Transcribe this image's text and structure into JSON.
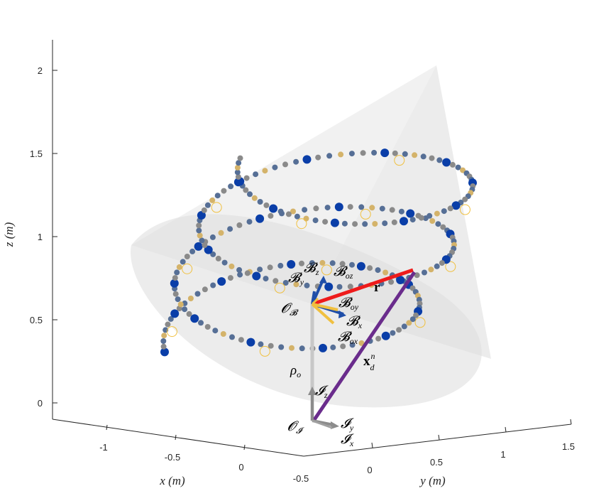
{
  "chart_data": {
    "type": "scatter",
    "title": "",
    "zlabel": "z (m)",
    "xlabel": "x (m)",
    "ylabel": "y (m)",
    "zlim": [
      0,
      2.2
    ],
    "z_ticks": [
      "0",
      "0.5",
      "1",
      "1.5",
      "2"
    ],
    "x_ticks": [
      "-1",
      "-0.5",
      "0"
    ],
    "y_ticks": [
      "-0.5",
      "0",
      "0.5",
      "1",
      "1.5"
    ],
    "grid": false,
    "legend": "none",
    "annotations": {
      "Bz": "𝓑",
      "Bz_sub": "z",
      "By": "𝓑",
      "By_sub": "y",
      "Boz": "𝓑",
      "Boz_sub": "oz",
      "r": "r",
      "OB": "𝓞",
      "OB_sub": "𝓑",
      "Boy": "𝓑",
      "Boy_sub": "oy",
      "Bx": "𝓑",
      "Bx_sub": "x",
      "Box": "𝓑",
      "Box_sub": "ox",
      "xd": "x",
      "xd_sup": "n",
      "xd_sub": "d",
      "rho": "ρ",
      "rho_sub": "o",
      "Iz": "𝓘",
      "Iz_sub": "z",
      "OI": "𝓞",
      "OI_sub": "𝓘",
      "Iy": "𝓘",
      "Iy_sub": "y",
      "Ix": "𝓘",
      "Ix_sub": "x"
    },
    "colors": {
      "blue_dot": "#0a3ea8",
      "slate_dot": "#566f96",
      "gray_dot": "#8a8a8a",
      "gold_dot": "#d4b36a",
      "gold_ring": "#f0c040",
      "red_vector": "#ee1b1b",
      "purple_vector": "#6a2c8c",
      "gray_vector": "#bfbfbf",
      "cone": "#d9d9d9"
    }
  }
}
